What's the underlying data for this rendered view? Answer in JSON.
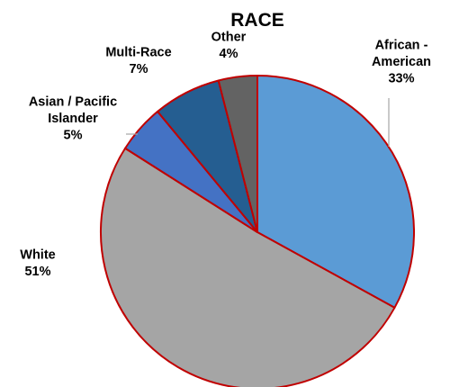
{
  "chart_data": {
    "type": "pie",
    "title": "RACE",
    "slices": [
      {
        "name_lines": [
          "African -",
          "American"
        ],
        "value": 33,
        "value_label": "33%",
        "color": "#5B9BD5"
      },
      {
        "name_lines": [
          "White"
        ],
        "value": 51,
        "value_label": "51%",
        "color": "#A5A5A5"
      },
      {
        "name_lines": [
          "Asian / Pacific",
          "Islander"
        ],
        "value": 5,
        "value_label": "5%",
        "color": "#4472C4"
      },
      {
        "name_lines": [
          "Multi-Race"
        ],
        "value": 7,
        "value_label": "7%",
        "color": "#255E91"
      },
      {
        "name_lines": [
          "Other"
        ],
        "value": 4,
        "value_label": "4%",
        "color": "#636363"
      }
    ],
    "slice_border_color": "#C00000",
    "leader_line_color": "#A5A5A5",
    "legend": "none",
    "start_angle": "12 o'clock",
    "direction": "clockwise"
  }
}
